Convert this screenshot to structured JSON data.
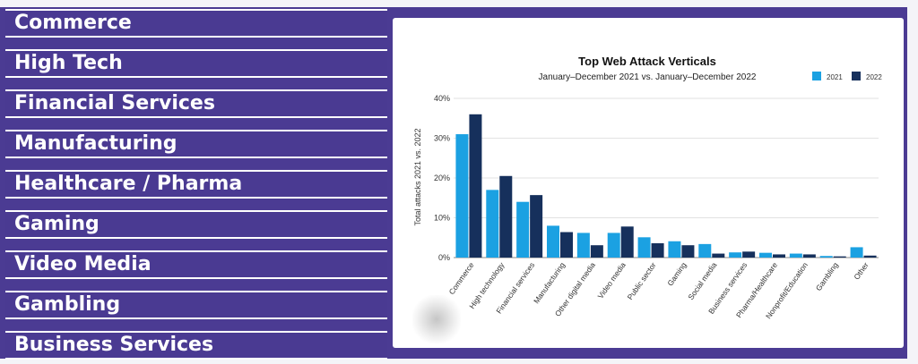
{
  "sidebar": {
    "items": [
      {
        "label": "Commerce"
      },
      {
        "label": "High Tech"
      },
      {
        "label": "Financial Services"
      },
      {
        "label": "Manufacturing"
      },
      {
        "label": "Healthcare / Pharma"
      },
      {
        "label": "Gaming"
      },
      {
        "label": "Video Media"
      },
      {
        "label": "Gambling"
      },
      {
        "label": "Business Services"
      }
    ]
  },
  "colors": {
    "background": "#4b3b93",
    "series_2021": "#1ba1e2",
    "series_2022": "#16305c"
  },
  "chart_data": {
    "type": "bar",
    "title": "Top Web Attack Verticals",
    "subtitle": "January–December 2021 vs. January–December 2022",
    "xlabel": "",
    "ylabel": "Total attacks 2021 vs. 2022",
    "ylim": [
      0,
      40
    ],
    "yticks": [
      "0%",
      "10%",
      "20%",
      "30%",
      "40%"
    ],
    "grid": true,
    "legend_position": "top-right",
    "categories": [
      "Commerce",
      "High technology",
      "Financial services",
      "Manufacturing",
      "Other digital media",
      "Video media",
      "Public sector",
      "Gaming",
      "Social media",
      "Business services",
      "Pharma/Healthcare",
      "Nonprofit/Education",
      "Gambling",
      "Other"
    ],
    "series": [
      {
        "name": "2021",
        "color": "#1ba1e2",
        "values": [
          31,
          17,
          14,
          8,
          6.2,
          6.2,
          5.1,
          4.1,
          3.4,
          1.3,
          1.2,
          1.0,
          0.4,
          2.6
        ]
      },
      {
        "name": "2022",
        "color": "#16305c",
        "values": [
          36,
          20.5,
          15.7,
          6.4,
          3.1,
          7.8,
          3.6,
          3.1,
          1.0,
          1.5,
          0.8,
          0.8,
          0.3,
          0.5
        ]
      }
    ]
  }
}
